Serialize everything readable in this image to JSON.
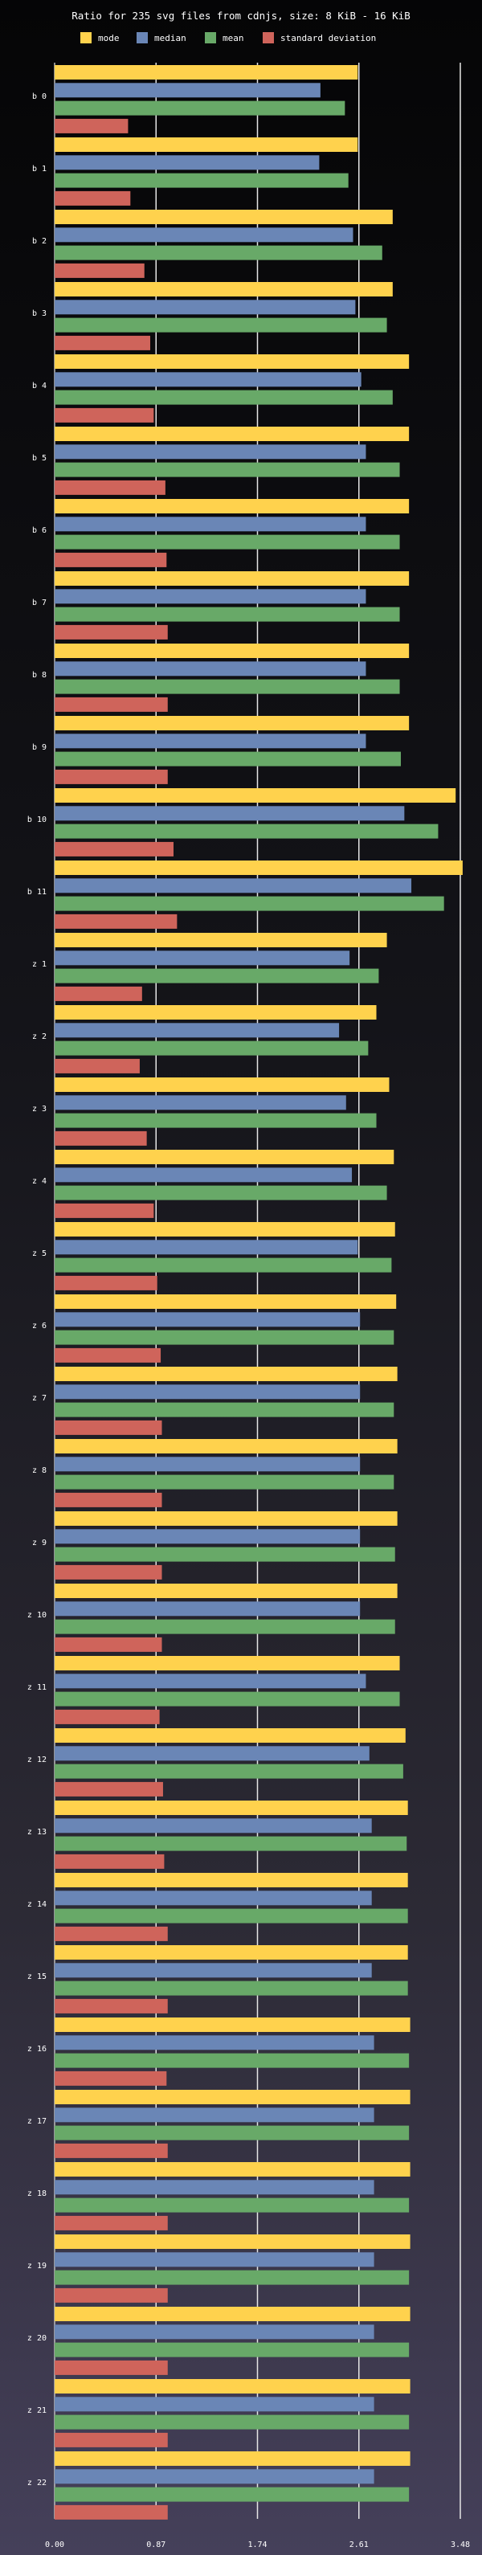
{
  "chart_data": {
    "type": "bar",
    "orientation": "horizontal",
    "title": "Ratio for 235 svg files from cdnjs, size: 8 KiB - 16 KiB",
    "xlabel": "",
    "ylabel": "",
    "xlim": [
      0,
      3.48
    ],
    "x_ticks": [
      "0.00",
      "0.87",
      "1.74",
      "2.61",
      "3.48"
    ],
    "grid": true,
    "legend_position": "top",
    "categories": [
      "b 0",
      "b 1",
      "b 2",
      "b 3",
      "b 4",
      "b 5",
      "b 6",
      "b 7",
      "b 8",
      "b 9",
      "b 10",
      "b 11",
      "z 1",
      "z 2",
      "z 3",
      "z 4",
      "z 5",
      "z 6",
      "z 7",
      "z 8",
      "z 9",
      "z 10",
      "z 11",
      "z 12",
      "z 13",
      "z 14",
      "z 15",
      "z 16",
      "z 17",
      "z 18",
      "z 19",
      "z 20",
      "z 21",
      "z 22"
    ],
    "series": [
      {
        "name": "mode",
        "color": "#ffd24d",
        "values": [
          2.6,
          2.6,
          2.9,
          2.9,
          3.04,
          3.04,
          3.04,
          3.04,
          3.04,
          3.04,
          3.44,
          3.5,
          2.85,
          2.76,
          2.87,
          2.91,
          2.92,
          2.93,
          2.94,
          2.94,
          2.94,
          2.94,
          2.96,
          3.01,
          3.03,
          3.03,
          3.03,
          3.05,
          3.05,
          3.05,
          3.05,
          3.05,
          3.05,
          3.05
        ]
      },
      {
        "name": "median",
        "color": "#6a86b6",
        "values": [
          2.28,
          2.27,
          2.56,
          2.58,
          2.63,
          2.67,
          2.67,
          2.67,
          2.67,
          2.67,
          3.0,
          3.06,
          2.53,
          2.44,
          2.5,
          2.55,
          2.6,
          2.62,
          2.62,
          2.62,
          2.62,
          2.62,
          2.67,
          2.7,
          2.72,
          2.72,
          2.72,
          2.74,
          2.74,
          2.74,
          2.74,
          2.74,
          2.74,
          2.74
        ]
      },
      {
        "name": "mean",
        "color": "#68a968",
        "values": [
          2.49,
          2.52,
          2.81,
          2.85,
          2.9,
          2.96,
          2.96,
          2.96,
          2.96,
          2.97,
          3.29,
          3.34,
          2.78,
          2.69,
          2.76,
          2.85,
          2.89,
          2.91,
          2.91,
          2.91,
          2.92,
          2.92,
          2.96,
          2.99,
          3.02,
          3.03,
          3.03,
          3.04,
          3.04,
          3.04,
          3.04,
          3.04,
          3.04,
          3.04
        ]
      },
      {
        "name": "standard deviation",
        "color": "#cf645b",
        "values": [
          0.63,
          0.65,
          0.77,
          0.82,
          0.85,
          0.95,
          0.96,
          0.97,
          0.97,
          0.97,
          1.02,
          1.05,
          0.75,
          0.73,
          0.79,
          0.85,
          0.88,
          0.91,
          0.92,
          0.92,
          0.92,
          0.92,
          0.9,
          0.93,
          0.94,
          0.97,
          0.97,
          0.96,
          0.97,
          0.97,
          0.97,
          0.97,
          0.97,
          0.97
        ]
      }
    ]
  }
}
